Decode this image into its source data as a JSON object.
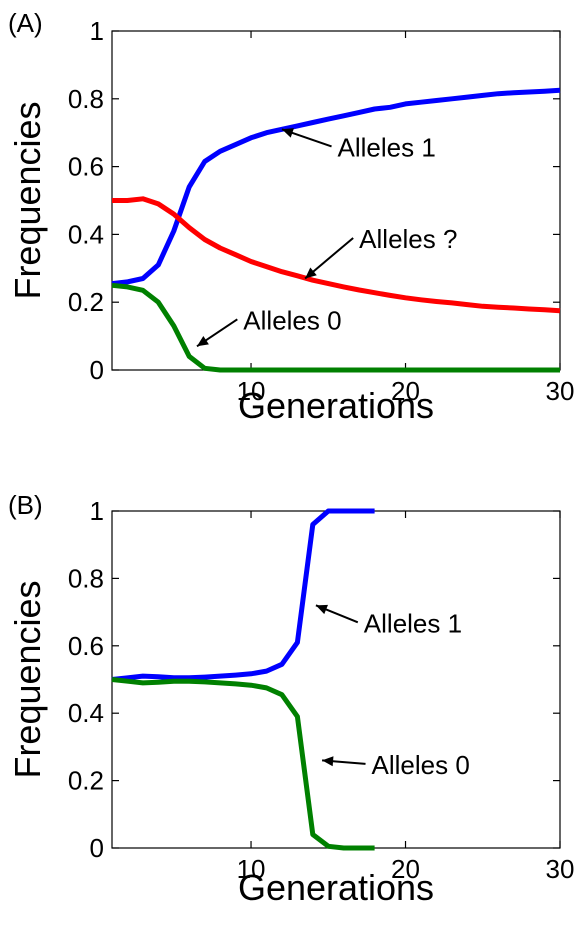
{
  "chart_data": [
    {
      "type": "line",
      "panel_label": "(A)",
      "xlabel": "Generations",
      "ylabel": "Frequencies",
      "xlim": [
        1,
        30
      ],
      "ylim": [
        0,
        1
      ],
      "xticks": [
        10,
        20,
        30
      ],
      "yticks": [
        0,
        0.2,
        0.4,
        0.6,
        0.8,
        1
      ],
      "ytick_labels": [
        "0",
        "0.2",
        "0.4",
        "0.6",
        "0.8",
        "1"
      ],
      "grid": false,
      "series": [
        {
          "name": "Alleles 1",
          "color": "#0000ff",
          "x": [
            1,
            2,
            3,
            4,
            5,
            6,
            7,
            8,
            9,
            10,
            11,
            12,
            13,
            14,
            15,
            16,
            17,
            18,
            19,
            20,
            21,
            22,
            23,
            24,
            25,
            26,
            27,
            28,
            29,
            30
          ],
          "y": [
            0.255,
            0.26,
            0.27,
            0.31,
            0.41,
            0.54,
            0.615,
            0.645,
            0.665,
            0.685,
            0.7,
            0.71,
            0.72,
            0.73,
            0.74,
            0.75,
            0.76,
            0.77,
            0.775,
            0.785,
            0.79,
            0.795,
            0.8,
            0.805,
            0.81,
            0.815,
            0.818,
            0.82,
            0.822,
            0.825
          ]
        },
        {
          "name": "Alleles ?",
          "color": "#ff0000",
          "x": [
            1,
            2,
            3,
            4,
            5,
            6,
            7,
            8,
            9,
            10,
            11,
            12,
            13,
            14,
            15,
            16,
            17,
            18,
            19,
            20,
            21,
            22,
            23,
            24,
            25,
            26,
            27,
            28,
            29,
            30
          ],
          "y": [
            0.5,
            0.5,
            0.505,
            0.49,
            0.46,
            0.42,
            0.385,
            0.36,
            0.34,
            0.32,
            0.305,
            0.29,
            0.278,
            0.265,
            0.255,
            0.245,
            0.236,
            0.228,
            0.22,
            0.213,
            0.207,
            0.202,
            0.198,
            0.193,
            0.188,
            0.185,
            0.183,
            0.18,
            0.178,
            0.175
          ]
        },
        {
          "name": "Alleles 0",
          "color": "#008000",
          "x": [
            1,
            2,
            3,
            4,
            5,
            6,
            7,
            8,
            9,
            10,
            11,
            12,
            13,
            14,
            15,
            16,
            17,
            18,
            19,
            20,
            21,
            22,
            23,
            24,
            25,
            26,
            27,
            28,
            29,
            30
          ],
          "y": [
            0.25,
            0.245,
            0.235,
            0.2,
            0.13,
            0.04,
            0.005,
            0,
            0,
            0,
            0,
            0,
            0,
            0,
            0,
            0,
            0,
            0,
            0,
            0,
            0,
            0,
            0,
            0,
            0,
            0,
            0,
            0,
            0,
            0
          ]
        }
      ],
      "annotations": [
        {
          "text": "Alleles 1",
          "series": 0,
          "arrow_to": [
            12,
            0.71
          ],
          "label_at": [
            15.6,
            0.63
          ]
        },
        {
          "text": "Alleles ?",
          "series": 1,
          "arrow_to": [
            13.5,
            0.27
          ],
          "label_at": [
            17,
            0.36
          ]
        },
        {
          "text": "Alleles 0",
          "series": 2,
          "arrow_to": [
            6.5,
            0.07
          ],
          "label_at": [
            9.5,
            0.12
          ]
        }
      ]
    },
    {
      "type": "line",
      "panel_label": "(B)",
      "xlabel": "Generations",
      "ylabel": "Frequencies",
      "xlim": [
        1,
        30
      ],
      "ylim": [
        0,
        1
      ],
      "xticks": [
        10,
        20,
        30
      ],
      "yticks": [
        0,
        0.2,
        0.4,
        0.6,
        0.8,
        1
      ],
      "ytick_labels": [
        "0",
        "0.2",
        "0.4",
        "0.6",
        "0.8",
        "1"
      ],
      "grid": false,
      "series": [
        {
          "name": "Alleles 1",
          "color": "#0000ff",
          "x": [
            1,
            2,
            3,
            4,
            5,
            6,
            7,
            8,
            9,
            10,
            11,
            12,
            13,
            14,
            15,
            16,
            17,
            18
          ],
          "y": [
            0.5,
            0.505,
            0.51,
            0.508,
            0.505,
            0.505,
            0.507,
            0.51,
            0.513,
            0.517,
            0.525,
            0.545,
            0.61,
            0.96,
            1,
            1,
            1,
            1
          ]
        },
        {
          "name": "Alleles 0",
          "color": "#008000",
          "x": [
            1,
            2,
            3,
            4,
            5,
            6,
            7,
            8,
            9,
            10,
            11,
            12,
            13,
            14,
            15,
            16,
            17,
            18
          ],
          "y": [
            0.5,
            0.495,
            0.49,
            0.492,
            0.495,
            0.495,
            0.493,
            0.49,
            0.487,
            0.483,
            0.475,
            0.455,
            0.39,
            0.04,
            0.005,
            0,
            0,
            0
          ]
        }
      ],
      "annotations": [
        {
          "text": "Alleles 1",
          "series": 0,
          "arrow_to": [
            14.2,
            0.72
          ],
          "label_at": [
            17.3,
            0.64
          ]
        },
        {
          "text": "Alleles 0",
          "series": 1,
          "arrow_to": [
            14.6,
            0.26
          ],
          "label_at": [
            17.8,
            0.22
          ]
        }
      ]
    }
  ]
}
